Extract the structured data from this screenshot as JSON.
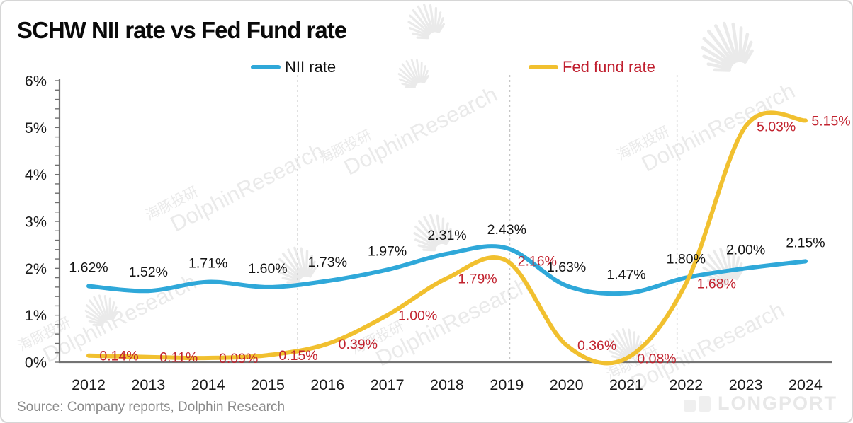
{
  "title": "SCHW NII rate vs Fed Fund rate",
  "legend": [
    {
      "label": "NII rate",
      "color": "#2fa8d9",
      "text_color": "#111111"
    },
    {
      "label": "Fed fund rate",
      "color": "#f1c02f",
      "text_color": "#c01e2e"
    }
  ],
  "footer": {
    "source": "Source: Company reports, Dolphin Research",
    "brand": "LONGPORT"
  },
  "watermark": {
    "cn": "海豚投研",
    "en": "DolphinResearch"
  },
  "colors": {
    "nii_line": "#2fa8d9",
    "fed_line": "#f1c02f",
    "nii_label": "#141414",
    "fed_label": "#c2232f",
    "axis": "#737373",
    "tick": "#6f6f6f",
    "axis_text": "#1a1a1a",
    "dashed_gridline": "#c6c6c6",
    "watermark": "#d9d9d9",
    "source_text": "#8a8a8a",
    "brand_text": "#e8e8e8"
  },
  "chart_data": {
    "type": "line",
    "title": "SCHW NII rate vs Fed Fund rate",
    "categories": [
      "2012",
      "2013",
      "2014",
      "2015",
      "2016",
      "2017",
      "2018",
      "2019",
      "2020",
      "2021",
      "2022",
      "2023",
      "2024"
    ],
    "series": [
      {
        "name": "NII rate",
        "color": "#2fa8d9",
        "label_color": "#141414",
        "values": [
          1.62,
          1.52,
          1.71,
          1.6,
          1.73,
          1.97,
          2.31,
          2.43,
          1.63,
          1.47,
          1.8,
          2.0,
          2.15
        ],
        "labels": [
          "1.62%",
          "1.52%",
          "1.71%",
          "1.60%",
          "1.73%",
          "1.97%",
          "2.31%",
          "2.43%",
          "1.63%",
          "1.47%",
          "1.80%",
          "2.00%",
          "2.15%"
        ]
      },
      {
        "name": "Fed fund rate",
        "color": "#f1c02f",
        "label_color": "#c2232f",
        "values": [
          0.14,
          0.11,
          0.09,
          0.15,
          0.39,
          1.0,
          1.79,
          2.16,
          0.36,
          0.08,
          1.68,
          5.03,
          5.15
        ],
        "labels": [
          "0.14%",
          "0.11%",
          "0.09%",
          "0.15%",
          "0.39%",
          "1.00%",
          "1.79%",
          "2.16%",
          "0.36%",
          "0.08%",
          "1.68%",
          "5.03%",
          "5.15%"
        ]
      }
    ],
    "xlabel": "",
    "ylabel": "",
    "ylim": [
      0,
      6
    ],
    "y_tick_labels": [
      "0%",
      "1%",
      "2%",
      "3%",
      "4%",
      "5%",
      "6%"
    ],
    "y_tick_step": 1,
    "y_minor_tick_step": 0.2,
    "dashed_vlines_at_year": [
      2015.5,
      2019.05,
      2021.85
    ],
    "grid": "off",
    "legend_position": "top-center"
  }
}
